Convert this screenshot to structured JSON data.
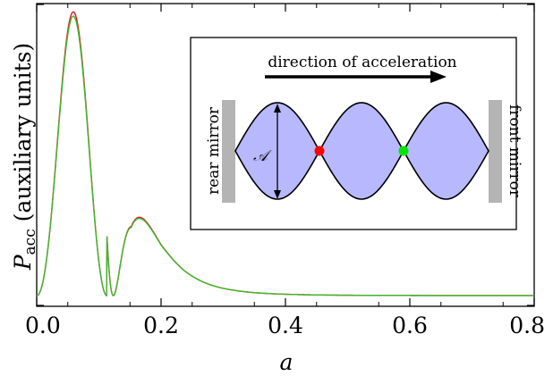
{
  "chart_data": {
    "type": "line",
    "xlabel": "a",
    "ylabel_main": "P",
    "ylabel_sub": "acc",
    "ylabel_rest": " (auxiliary units)",
    "xlim": [
      0.0,
      0.8
    ],
    "x_ticks": [
      "0.0",
      "0.2",
      "0.4",
      "0.6",
      "0.8"
    ],
    "y_ticks_labeled": false,
    "grid": false,
    "peaks": [
      {
        "x": 0.075,
        "y": 1.0
      },
      {
        "x": 0.152,
        "y": 0.31
      },
      {
        "x": 0.2,
        "y": 0.205
      },
      {
        "x": 0.237,
        "y": 0.155
      },
      {
        "x": 0.268,
        "y": 0.123
      },
      {
        "x": 0.296,
        "y": 0.101
      },
      {
        "x": 0.321,
        "y": 0.086
      },
      {
        "x": 0.344,
        "y": 0.074
      },
      {
        "x": 0.366,
        "y": 0.065
      },
      {
        "x": 0.387,
        "y": 0.058
      }
    ],
    "series": [
      {
        "color": "#e8141e",
        "values_note": "analytic"
      },
      {
        "color": "#3cb82b",
        "values_note": "numeric"
      }
    ],
    "inset": {
      "arrow_label": "direction of acceleration",
      "left_label": "rear mirror",
      "right_label": "front mirror",
      "amplitude_label": "𝒜",
      "lobe_fill": "#b8b8ff",
      "mirror_color": "#b4b4b4",
      "node_colors": [
        "#ff0000",
        "#00e600"
      ]
    }
  }
}
